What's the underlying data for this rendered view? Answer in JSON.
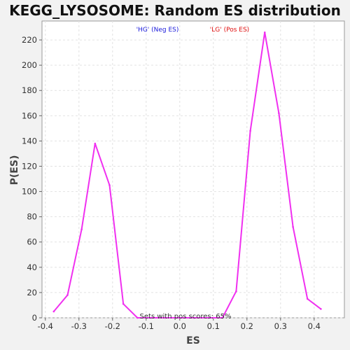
{
  "chart_data": {
    "type": "line",
    "title": "KEGG_LYSOSOME: Random ES distribution",
    "xlabel": "ES",
    "ylabel": "P(ES)",
    "xlim": [
      -0.41,
      0.49
    ],
    "ylim": [
      0,
      235
    ],
    "xticks": [
      "-0.4",
      "-0.3",
      "-0.2",
      "-0.1",
      "0.0",
      "0.1",
      "0.2",
      "0.3",
      "0.4"
    ],
    "yticks": [
      "0",
      "20",
      "40",
      "60",
      "80",
      "100",
      "120",
      "140",
      "160",
      "180",
      "200",
      "220"
    ],
    "grid": true,
    "legend": [
      {
        "label": "'HG' (Neg ES)",
        "color": "#1a1adb"
      },
      {
        "label": "'LG' (Pos ES)",
        "color": "#e01010"
      }
    ],
    "annotation": "Sets with pos scores: 65%",
    "line_color": "#f030f0",
    "series": [
      {
        "x": [
          -0.375,
          -0.334,
          -0.292,
          -0.252,
          -0.209,
          -0.168,
          -0.126,
          -0.085,
          -0.043,
          0.0,
          0.043,
          0.085,
          0.127,
          0.168,
          0.21,
          0.253,
          0.295,
          0.337,
          0.38,
          0.42
        ],
        "y": [
          5,
          18,
          70,
          138,
          105,
          11,
          0,
          0,
          0,
          0,
          0,
          0,
          0,
          21,
          148,
          226,
          162,
          72,
          15,
          7
        ]
      }
    ]
  }
}
